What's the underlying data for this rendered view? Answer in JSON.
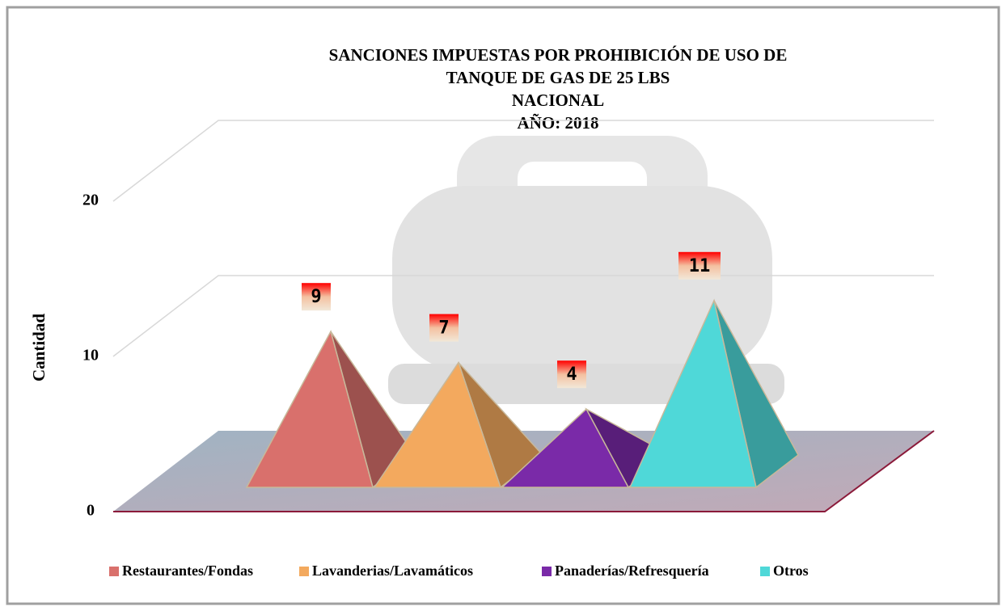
{
  "chart_data": {
    "type": "pyramid",
    "title": [
      "SANCIONES IMPUESTAS POR PROHIBICIÓN DE USO DE",
      "TANQUE DE GAS DE 25 LBS",
      "NACIONAL",
      "AÑO: 2018"
    ],
    "y_label": "Cantidad",
    "series": [
      {
        "name": "Restaurantes/Fondas",
        "color": "#d9706c",
        "values": [
          9
        ]
      },
      {
        "name": "Lavanderias/Lavamáticos",
        "color": "#f3a95e",
        "values": [
          7
        ]
      },
      {
        "name": "Panaderías/Refresquería",
        "color": "#7a2aa8",
        "values": [
          4
        ]
      },
      {
        "name": "Otros",
        "color": "#4fd8d8",
        "values": [
          11
        ]
      }
    ],
    "ylim": [
      0,
      20
    ],
    "yticks": [
      0,
      10,
      20
    ],
    "grid": true,
    "legend": "bottom"
  }
}
